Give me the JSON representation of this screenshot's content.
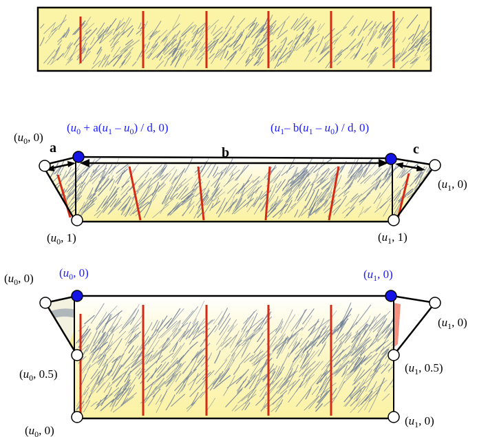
{
  "panel2": {
    "letters": {
      "a": "a",
      "b": "b",
      "c": "c"
    },
    "coord_labels": {
      "top_left": {
        "pre": "(",
        "var": "u",
        "sub": "0",
        "post": ", 0)"
      },
      "bottom_left": {
        "pre": "(",
        "var": "u",
        "sub": "0",
        "post": ", 1)"
      },
      "right_corner": {
        "pre": "(",
        "var": "u",
        "sub": "1",
        "post": ", 0)"
      },
      "bottom_right": {
        "pre": "(",
        "var": "u",
        "sub": "1",
        "post": ", 1)"
      }
    },
    "formula_left": {
      "p1": "(",
      "u0": "u",
      "s0": "0",
      "p2": " + a(",
      "u1": "u",
      "s1": "1",
      "p3": " – ",
      "u2": "u",
      "s2": "0",
      "p4": ") / d, 0)"
    },
    "formula_right": {
      "p1": "(",
      "u0": "u",
      "s0": "1",
      "p2": "–  b(",
      "u1": "u",
      "s1": "1",
      "p3": " – ",
      "u2": "u",
      "s2": "0",
      "p4": ") / d, 0)"
    }
  },
  "panel3": {
    "coord_labels": {
      "top_left": {
        "pre": "(",
        "var": "u",
        "sub": "0",
        "post": ", 0)"
      },
      "mid_left": {
        "pre": "(",
        "var": "u",
        "sub": "0",
        "post": ", 0.5)"
      },
      "bottom_left": {
        "pre": "(",
        "var": "u",
        "sub": "0",
        "post": ", 0)"
      },
      "right_corner": {
        "pre": "(",
        "var": "u",
        "sub": "1",
        "post": ", 0)"
      },
      "mid_right": {
        "pre": "(",
        "var": "u",
        "sub": "1",
        "post": ", 0.5)"
      },
      "bottom_right": {
        "pre": "(",
        "var": "u",
        "sub": "1",
        "post": ", 0)"
      }
    },
    "blue_labels": {
      "left": {
        "pre": "(",
        "var": "u",
        "sub": "0",
        "post": ", 0)"
      },
      "right": {
        "pre": "(",
        "var": "u",
        "sub": "1",
        "post": ", 0)"
      }
    }
  },
  "colors": {
    "paper": "#fbf3a6",
    "stroke_texture": "#6f7e98",
    "seam": "#d42a16",
    "blue_point": "#1414e6",
    "blue_text": "#1a1aff"
  }
}
